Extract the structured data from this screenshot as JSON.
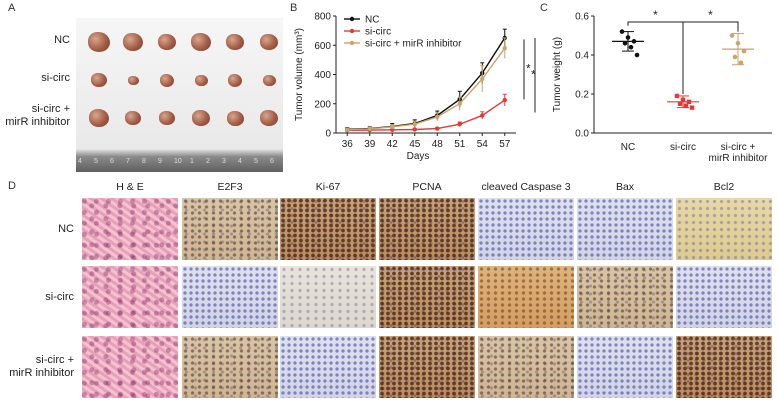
{
  "panels": {
    "a": "A",
    "b": "B",
    "c": "C",
    "d": "D"
  },
  "photo": {
    "row_labels": [
      "NC",
      "si-circ",
      "si-circ +\nmirR inhibitor"
    ],
    "ruler_numbers": [
      "4",
      "5",
      "6",
      "7",
      "8",
      "9",
      "10",
      "1",
      "2",
      "3",
      "4",
      "5",
      "6"
    ]
  },
  "chart_data": [
    {
      "type": "line",
      "xlabel": "Days",
      "ylabel": "Tumor volume (mm³)",
      "x": [
        36,
        39,
        42,
        45,
        48,
        51,
        54,
        57
      ],
      "xlim": [
        34.5,
        58.5
      ],
      "ylim": [
        0,
        800
      ],
      "yticks": [
        0,
        200,
        400,
        600,
        800
      ],
      "series": [
        {
          "name": "NC",
          "color": "#111111",
          "values": [
            25,
            30,
            45,
            65,
            120,
            230,
            410,
            650
          ],
          "err": [
            10,
            12,
            20,
            25,
            30,
            55,
            70,
            60
          ]
        },
        {
          "name": "si-circ",
          "color": "#e53935",
          "values": [
            18,
            20,
            22,
            24,
            30,
            60,
            120,
            225
          ],
          "err": [
            5,
            5,
            6,
            6,
            8,
            15,
            25,
            40
          ]
        },
        {
          "name": "si-circ + mirR inhibitor",
          "color": "#c9a46c",
          "values": [
            22,
            28,
            42,
            60,
            110,
            200,
            370,
            580
          ],
          "err": [
            8,
            10,
            15,
            20,
            28,
            45,
            90,
            70
          ]
        }
      ],
      "significance": [
        "*",
        "*"
      ],
      "legend": "top-left"
    },
    {
      "type": "scatter",
      "ylabel": "Tumor weight (g)",
      "categories": [
        "NC",
        "si-circ",
        "si-circ +\nmirR inhibitor"
      ],
      "ylim": [
        0,
        0.6
      ],
      "yticks": [
        0.0,
        0.2,
        0.4,
        0.6
      ],
      "groups": [
        {
          "color": "#111111",
          "mean": 0.47,
          "sd": 0.05,
          "points": [
            0.52,
            0.49,
            0.47,
            0.46,
            0.44,
            0.4
          ]
        },
        {
          "color": "#e53935",
          "mean": 0.16,
          "sd": 0.03,
          "points": [
            0.19,
            0.17,
            0.16,
            0.15,
            0.14,
            0.13
          ]
        },
        {
          "color": "#c9a46c",
          "mean": 0.43,
          "sd": 0.08,
          "points": [
            0.5,
            0.46,
            0.42,
            0.39,
            0.36
          ]
        }
      ],
      "significance": [
        "*",
        "*"
      ]
    }
  ],
  "ihc": {
    "columns": [
      "H & E",
      "E2F3",
      "Ki-67",
      "PCNA",
      "cleaved Caspase 3",
      "Bax",
      "Bcl2"
    ],
    "rows": [
      {
        "label": "NC",
        "tiles": [
          "he",
          "brown",
          "dark",
          "dark",
          "blue",
          "blue",
          "yellow"
        ]
      },
      {
        "label": "si-circ",
        "tiles": [
          "he",
          "blue",
          "pale",
          "dark",
          "orange",
          "brown",
          "blue"
        ]
      },
      {
        "label": "si-circ +\nmirR inhibitor",
        "tiles": [
          "he",
          "brown",
          "blue",
          "dark",
          "brown",
          "blue",
          "dark"
        ]
      }
    ]
  }
}
